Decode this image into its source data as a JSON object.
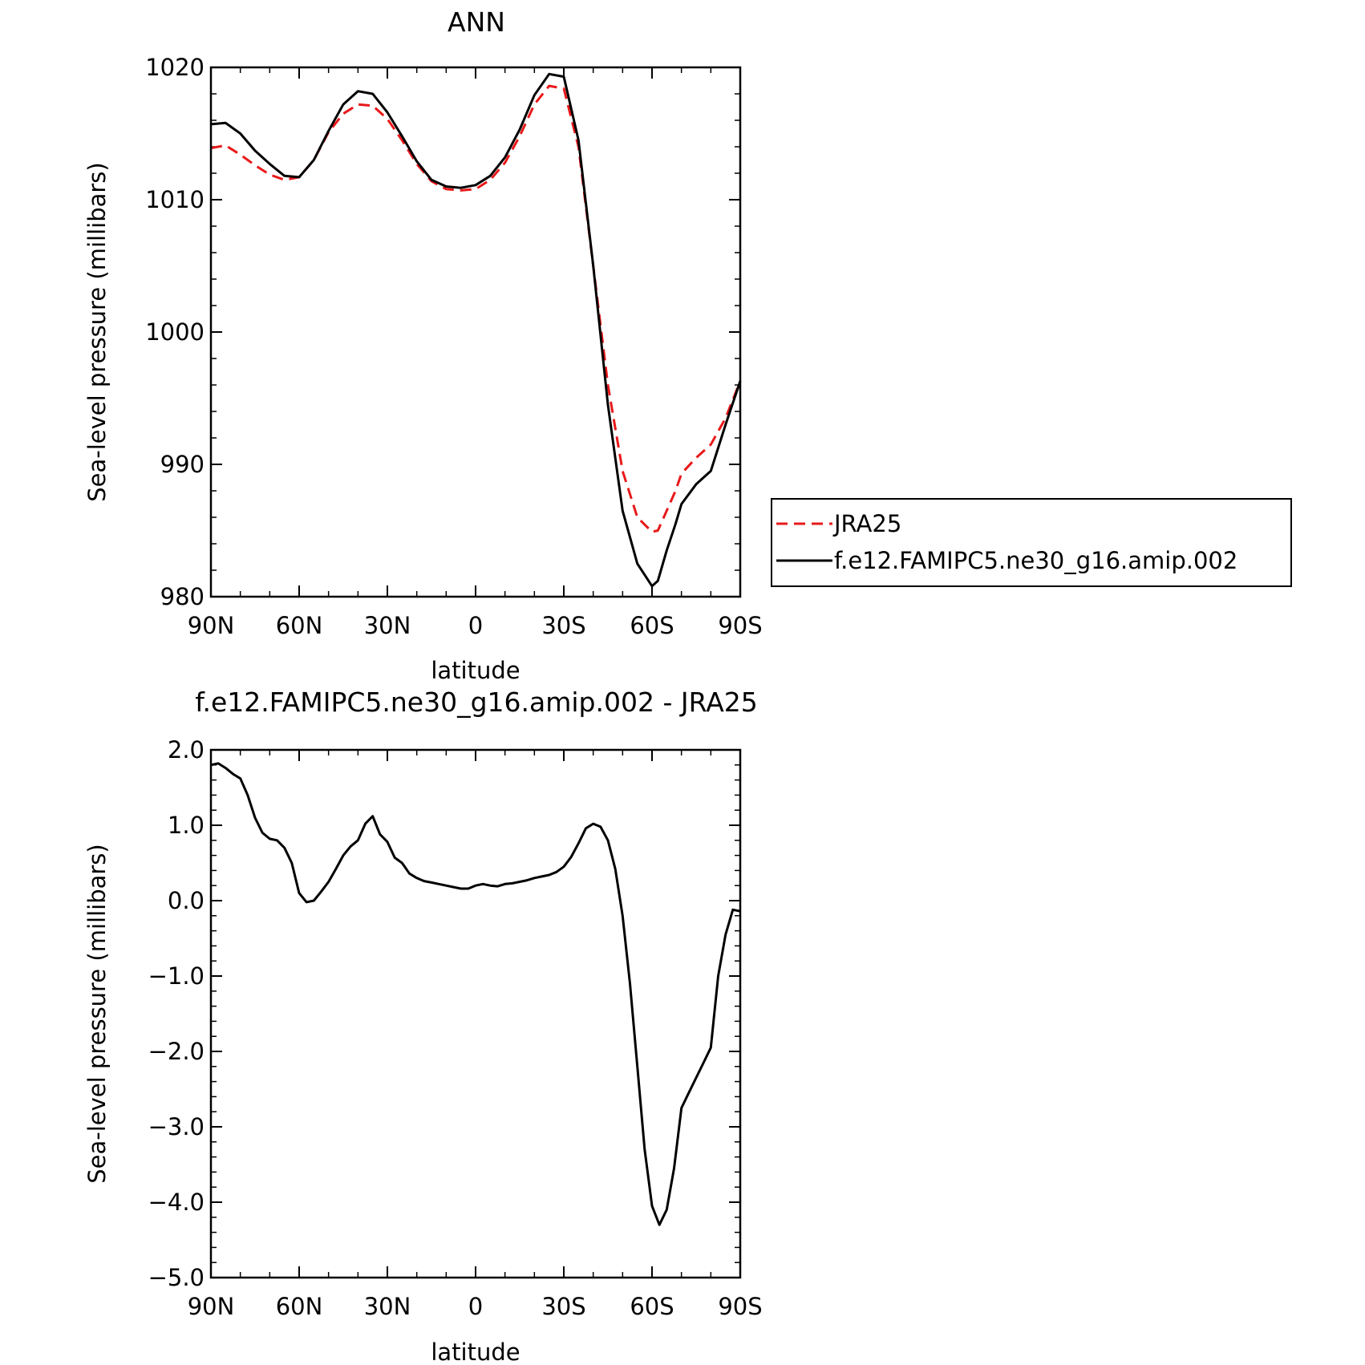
{
  "colors": {
    "model": "#000000",
    "obs": "#e8191a"
  },
  "chart_data": [
    {
      "type": "line",
      "title": "ANN",
      "xlabel": "latitude",
      "ylabel": "Sea-level pressure (millibars)",
      "xlim": [
        90,
        -90
      ],
      "ylim": [
        980,
        1020
      ],
      "xticks": [
        90,
        60,
        30,
        0,
        -30,
        -60,
        -90
      ],
      "xtick_labels": [
        "90N",
        "60N",
        "30N",
        "0",
        "30S",
        "60S",
        "90S"
      ],
      "yticks": [
        980,
        990,
        1000,
        1010,
        1020
      ],
      "ytick_labels": [
        "980",
        "990",
        "1000",
        "1010",
        "1020"
      ],
      "legend": {
        "placement": "right"
      },
      "series": [
        {
          "name": "JRA25",
          "style": "dashed",
          "color": "#e8191a",
          "x": [
            90,
            85,
            80,
            75,
            70,
            65,
            60,
            55,
            50,
            45,
            40,
            35,
            30,
            25,
            20,
            15,
            10,
            5,
            0,
            -5,
            -10,
            -15,
            -20,
            -25,
            -30,
            -35,
            -40,
            -45,
            -50,
            -55,
            -60,
            -62,
            -65,
            -68,
            -70,
            -75,
            -80,
            -85,
            -90
          ],
          "values": [
            1013.9,
            1014.1,
            1013.4,
            1012.6,
            1011.9,
            1011.5,
            1011.7,
            1013.0,
            1015.1,
            1016.5,
            1017.2,
            1017.1,
            1016.1,
            1014.5,
            1012.7,
            1011.4,
            1010.8,
            1010.7,
            1010.8,
            1011.5,
            1012.8,
            1014.8,
            1017.2,
            1018.6,
            1018.4,
            1014.0,
            1005.0,
            996.0,
            989.5,
            986.0,
            984.9,
            985.0,
            986.5,
            988.0,
            989.3,
            990.5,
            991.5,
            993.5,
            996.3
          ]
        },
        {
          "name": "f.e12.FAMIPC5.ne30_g16.amip.002",
          "style": "solid",
          "color": "#000000",
          "x": [
            90,
            85,
            80,
            75,
            70,
            65,
            60,
            55,
            50,
            45,
            40,
            35,
            30,
            25,
            20,
            15,
            10,
            5,
            0,
            -5,
            -10,
            -15,
            -20,
            -25,
            -30,
            -35,
            -40,
            -45,
            -50,
            -55,
            -60,
            -62,
            -65,
            -68,
            -70,
            -75,
            -80,
            -85,
            -90
          ],
          "values": [
            1015.7,
            1015.8,
            1015.0,
            1013.7,
            1012.7,
            1011.8,
            1011.7,
            1013.0,
            1015.2,
            1017.2,
            1018.2,
            1018.0,
            1016.6,
            1014.8,
            1012.9,
            1011.5,
            1011.0,
            1010.9,
            1011.1,
            1011.8,
            1013.2,
            1015.3,
            1017.9,
            1019.5,
            1019.3,
            1014.5,
            1005.0,
            994.5,
            986.5,
            982.5,
            980.8,
            981.2,
            983.5,
            985.5,
            987.0,
            988.5,
            989.5,
            993.0,
            996.3
          ]
        }
      ]
    },
    {
      "type": "line",
      "title": "f.e12.FAMIPC5.ne30_g16.amip.002 - JRA25",
      "xlabel": "latitude",
      "ylabel": "Sea-level pressure (millibars)",
      "xlim": [
        90,
        -90
      ],
      "ylim": [
        -5,
        2
      ],
      "xticks": [
        90,
        60,
        30,
        0,
        -30,
        -60,
        -90
      ],
      "xtick_labels": [
        "90N",
        "60N",
        "30N",
        "0",
        "30S",
        "60S",
        "90S"
      ],
      "yticks": [
        -5,
        -4,
        -3,
        -2,
        -1,
        0,
        1,
        2
      ],
      "ytick_labels": [
        "−5.0",
        "−4.0",
        "−3.0",
        "−2.0",
        "−1.0",
        "0.0",
        "1.0",
        "2.0"
      ],
      "series": [
        {
          "style": "solid",
          "color": "#000000",
          "x": [
            90,
            87.5,
            85,
            82.5,
            80,
            77.5,
            75,
            72.5,
            70,
            67.5,
            65,
            62.5,
            60,
            57.5,
            55,
            52.5,
            50,
            47.5,
            45,
            42.5,
            40,
            37.5,
            35,
            32.5,
            30,
            27.5,
            25,
            22.5,
            20,
            17.5,
            15,
            12.5,
            10,
            7.5,
            5,
            2.5,
            0,
            -2.5,
            -5,
            -7.5,
            -10,
            -12.5,
            -15,
            -17.5,
            -20,
            -22.5,
            -25,
            -27.5,
            -30,
            -32.5,
            -35,
            -37.5,
            -40,
            -42.5,
            -45,
            -47.5,
            -50,
            -52.5,
            -55,
            -57.5,
            -60,
            -62.5,
            -65,
            -67.5,
            -70,
            -72.5,
            -75,
            -77.5,
            -80,
            -82.5,
            -85,
            -87.5,
            -90
          ],
          "values": [
            1.8,
            1.82,
            1.76,
            1.68,
            1.62,
            1.4,
            1.1,
            0.9,
            0.82,
            0.8,
            0.7,
            0.5,
            0.1,
            -0.02,
            0.0,
            0.12,
            0.25,
            0.42,
            0.6,
            0.72,
            0.8,
            1.02,
            1.12,
            0.88,
            0.78,
            0.57,
            0.5,
            0.36,
            0.3,
            0.26,
            0.24,
            0.22,
            0.2,
            0.18,
            0.16,
            0.16,
            0.2,
            0.22,
            0.2,
            0.19,
            0.22,
            0.23,
            0.25,
            0.27,
            0.3,
            0.32,
            0.34,
            0.38,
            0.45,
            0.58,
            0.76,
            0.96,
            1.02,
            0.98,
            0.8,
            0.42,
            -0.2,
            -1.1,
            -2.2,
            -3.3,
            -4.05,
            -4.3,
            -4.1,
            -3.55,
            -2.75,
            -2.55,
            -2.35,
            -2.15,
            -1.95,
            -1.0,
            -0.45,
            -0.12,
            -0.14
          ]
        }
      ]
    }
  ]
}
